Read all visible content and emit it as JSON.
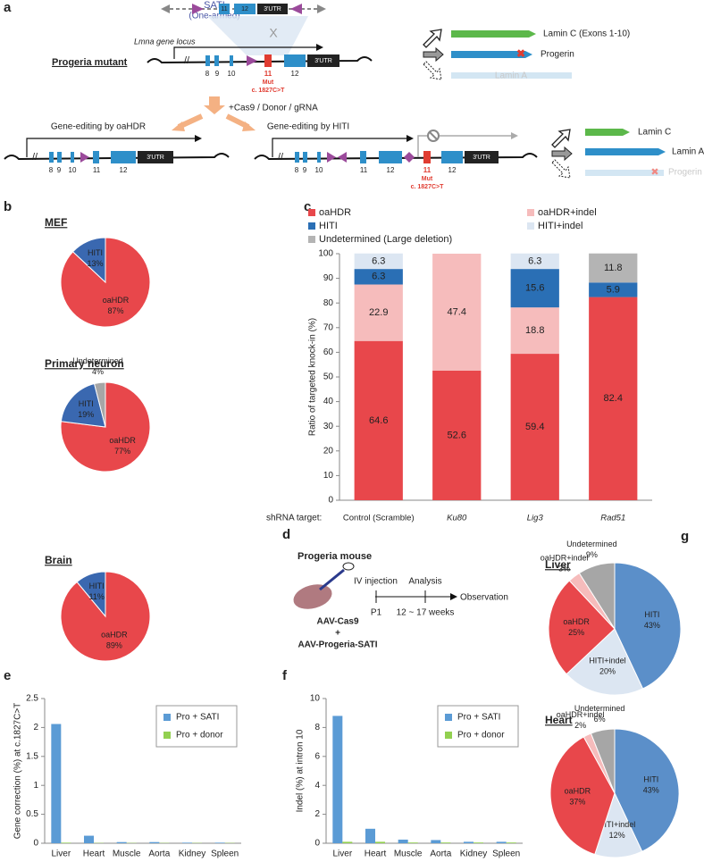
{
  "panel_labels": [
    "a",
    "b",
    "c",
    "d",
    "e",
    "f",
    "g"
  ],
  "panel_a": {
    "sati": "SATI",
    "sati_note": "(One-armed)",
    "locus": "Lmna gene locus",
    "mutant": "Progeria mutant",
    "exons": [
      "8",
      "9",
      "10",
      "11",
      "12"
    ],
    "utr": "3'UTR",
    "mutation": "Mut",
    "mutation_site": "c. 1827C>T",
    "products_top": [
      "Lamin C (Exons 1-10)",
      "Progerin",
      "Lamin A"
    ],
    "reagents": "+Cas9 / Donor / gRNA",
    "oahdr": "Gene-editing by oaHDR",
    "hiti": "Gene-editing by HITI",
    "products_bottom": [
      "Lamin C",
      "Lamin A",
      "Progerin"
    ]
  },
  "panel_d": {
    "title": "Progeria mouse",
    "injection": "IV injection",
    "analysis": "Analysis",
    "observation": "Observation",
    "start": "P1",
    "duration": "12 ~ 17 weeks",
    "vector1": "AAV-Cas9",
    "plus": "+",
    "vector2": "AAV-Progeria-SATI"
  },
  "chart_data": [
    {
      "type": "pie",
      "title": "MEF",
      "categories": [
        "oaHDR",
        "HITI"
      ],
      "values": [
        87,
        13
      ],
      "value_labels": [
        "87%",
        "13%"
      ],
      "colors": [
        "#e8474b",
        "#3a68b0"
      ]
    },
    {
      "type": "pie",
      "title": "Primary neuron",
      "categories": [
        "oaHDR",
        "HITI",
        "Undetermined"
      ],
      "values": [
        77,
        19,
        4
      ],
      "value_labels": [
        "77%",
        "19%",
        "4%"
      ],
      "colors": [
        "#e8474b",
        "#3a68b0",
        "#a6a6a6"
      ]
    },
    {
      "type": "pie",
      "title": "Brain",
      "categories": [
        "oaHDR",
        "HITI"
      ],
      "values": [
        89,
        11
      ],
      "value_labels": [
        "89%",
        "11%"
      ],
      "colors": [
        "#e8474b",
        "#3a68b0"
      ]
    },
    {
      "type": "bar",
      "stacked": true,
      "y_label": "Ratio of targeted knock-in (%)",
      "x_label": "shRNA target:",
      "categories": [
        "Control (Scramble)",
        "Ku80",
        "Lig3",
        "Rad51"
      ],
      "series": [
        {
          "name": "oaHDR",
          "color": "#e8474b",
          "values": [
            64.6,
            52.6,
            59.4,
            82.4
          ]
        },
        {
          "name": "oaHDR+indel",
          "color": "#f6bcbc",
          "values": [
            22.9,
            47.4,
            18.8,
            0
          ]
        },
        {
          "name": "HITI",
          "color": "#2a6fb5",
          "values": [
            6.3,
            0,
            15.6,
            5.9
          ]
        },
        {
          "name": "HITI+indel",
          "color": "#dce6f2",
          "values": [
            6.3,
            0,
            6.3,
            0
          ]
        },
        {
          "name": "Undetermined (Large deletion)",
          "color": "#b4b4b4",
          "values": [
            0,
            0,
            0,
            11.8
          ]
        }
      ],
      "ylim": [
        0,
        100
      ],
      "yticks": [
        0,
        10,
        20,
        30,
        40,
        50,
        60,
        70,
        80,
        90,
        100
      ],
      "legend": "top"
    },
    {
      "type": "bar",
      "y_label": "Gene correction (%) at c.1827C>T",
      "categories": [
        "Liver",
        "Heart",
        "Muscle",
        "Aorta",
        "Kidney",
        "Spleen"
      ],
      "series": [
        {
          "name": "Pro + SATI",
          "color": "#5b9bd5",
          "values": [
            2.06,
            0.13,
            0.02,
            0.02,
            0.01,
            0.01
          ]
        },
        {
          "name": "Pro + donor",
          "color": "#92d050",
          "values": [
            0.01,
            0.005,
            0.005,
            0.005,
            0.005,
            0.005
          ]
        }
      ],
      "ylim": [
        0,
        2.5
      ],
      "yticks": [
        0,
        0.5,
        1,
        1.5,
        2,
        2.5
      ],
      "legend": "upper right"
    },
    {
      "type": "bar",
      "y_label": "Indel (%) at intron 10",
      "categories": [
        "Liver",
        "Heart",
        "Muscle",
        "Aorta",
        "Kidney",
        "Spleen"
      ],
      "series": [
        {
          "name": "Pro + SATI",
          "color": "#5b9bd5",
          "values": [
            8.8,
            1.0,
            0.25,
            0.22,
            0.1,
            0.1
          ]
        },
        {
          "name": "Pro + donor",
          "color": "#92d050",
          "values": [
            0.1,
            0.1,
            0.05,
            0.05,
            0.05,
            0.05
          ]
        }
      ],
      "ylim": [
        0,
        10
      ],
      "yticks": [
        0,
        2,
        4,
        6,
        8,
        10
      ],
      "legend": "upper right"
    },
    {
      "type": "pie",
      "title": "Liver",
      "categories": [
        "HITI",
        "HITI+indel",
        "oaHDR",
        "oaHDR+indel",
        "Undetermined"
      ],
      "values": [
        43,
        20,
        25,
        3,
        9
      ],
      "value_labels": [
        "43%",
        "20%",
        "25%",
        "3%",
        "9%"
      ],
      "colors": [
        "#5b8fc9",
        "#dce6f2",
        "#e8474b",
        "#f6bcbc",
        "#a6a6a6"
      ]
    },
    {
      "type": "pie",
      "title": "Heart",
      "categories": [
        "HITI",
        "HITI+indel",
        "oaHDR",
        "oaHDR+indel",
        "Undetermined"
      ],
      "values": [
        43,
        12,
        37,
        2,
        6
      ],
      "value_labels": [
        "43%",
        "12%",
        "37%",
        "2%",
        "6%"
      ],
      "colors": [
        "#5b8fc9",
        "#dce6f2",
        "#e8474b",
        "#f6bcbc",
        "#a6a6a6"
      ]
    }
  ]
}
